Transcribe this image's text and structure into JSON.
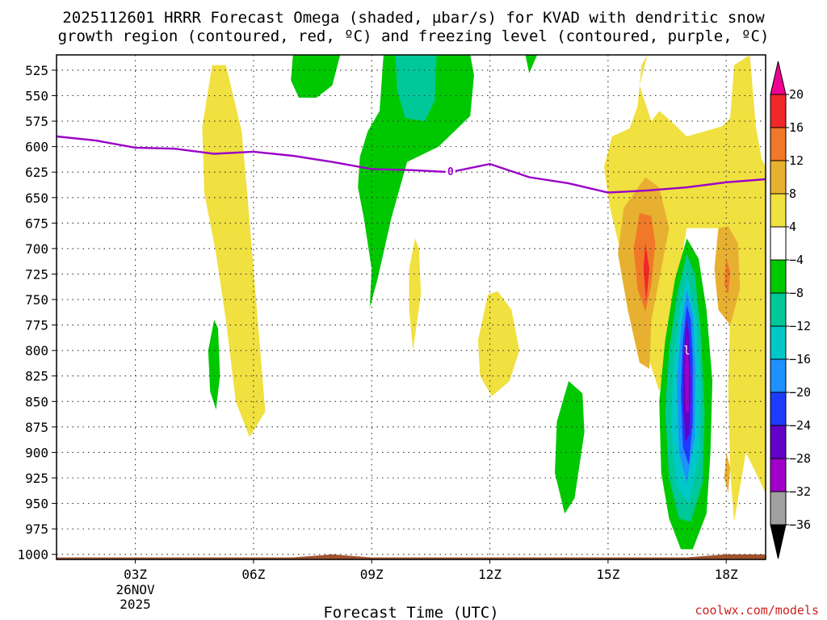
{
  "chart_data": {
    "type": "heatmap",
    "title_lines": [
      "2025112601 HRRR Forecast Omega (shaded, µbar/s) for KVAD with dendritic snow",
      "growth region (contoured, red, ºC) and freezing level (contoured, purple, ºC)"
    ],
    "xlabel": "Forecast Time (UTC)",
    "x_range_hours": [
      1,
      19
    ],
    "x_ticks": [
      {
        "hour": 3,
        "label": "03Z"
      },
      {
        "hour": 6,
        "label": "06Z"
      },
      {
        "hour": 9,
        "label": "09Z"
      },
      {
        "hour": 12,
        "label": "12Z"
      },
      {
        "hour": 15,
        "label": "15Z"
      },
      {
        "hour": 18,
        "label": "18Z"
      }
    ],
    "date_label": [
      "26NOV",
      "2025"
    ],
    "date_label_hour": 3,
    "y_range_mb": [
      1005,
      510
    ],
    "y_ticks": [
      525,
      550,
      575,
      600,
      625,
      650,
      675,
      700,
      725,
      750,
      775,
      800,
      825,
      850,
      875,
      900,
      925,
      950,
      975,
      1000
    ],
    "colorbar": {
      "levels": [
        20,
        16,
        12,
        8,
        4,
        -4,
        -8,
        -12,
        -16,
        -20,
        -24,
        -28,
        -32,
        -36
      ],
      "colors": [
        "#f00090",
        "#f02828",
        "#f07828",
        "#e8b030",
        "#f0e040",
        "#ffffff",
        "#00c800",
        "#00c898",
        "#00c8c8",
        "#1e90ff",
        "#1e3cff",
        "#6400c8",
        "#a000c8",
        "#a0a0a0",
        "#000000"
      ]
    },
    "freezing_level": {
      "label": "0",
      "color": "#9a00c8",
      "label_hour": 11.0,
      "points": [
        [
          1,
          590
        ],
        [
          2,
          594
        ],
        [
          3,
          601
        ],
        [
          4,
          602
        ],
        [
          5,
          607
        ],
        [
          6,
          605
        ],
        [
          7,
          609
        ],
        [
          8,
          615
        ],
        [
          9,
          622
        ],
        [
          10,
          623
        ],
        [
          11,
          625
        ],
        [
          12,
          617
        ],
        [
          13,
          630
        ],
        [
          14,
          636
        ],
        [
          15,
          645
        ],
        [
          16,
          643
        ],
        [
          17,
          640
        ],
        [
          18,
          635
        ],
        [
          19,
          632
        ]
      ]
    },
    "shaded_regions": [
      {
        "name": "yellow-06z-column",
        "value": 6,
        "points": [
          [
            4.95,
            520
          ],
          [
            4.7,
            580
          ],
          [
            4.75,
            645
          ],
          [
            5.05,
            705
          ],
          [
            5.3,
            770
          ],
          [
            5.55,
            850
          ],
          [
            5.9,
            885
          ],
          [
            6.3,
            860
          ],
          [
            6.15,
            790
          ],
          [
            6.0,
            720
          ],
          [
            5.85,
            650
          ],
          [
            5.7,
            585
          ],
          [
            5.3,
            520
          ]
        ]
      },
      {
        "name": "green-05z-strip",
        "value": -6,
        "points": [
          [
            5.0,
            770
          ],
          [
            4.85,
            800
          ],
          [
            4.9,
            840
          ],
          [
            5.05,
            858
          ],
          [
            5.15,
            825
          ],
          [
            5.1,
            778
          ]
        ]
      },
      {
        "name": "green-07z-top",
        "value": -6,
        "points": [
          [
            7.0,
            510
          ],
          [
            6.95,
            535
          ],
          [
            7.15,
            552
          ],
          [
            7.6,
            552
          ],
          [
            8.0,
            540
          ],
          [
            8.2,
            510
          ]
        ]
      },
      {
        "name": "green-09z-column",
        "value": -6,
        "points": [
          [
            9.3,
            510
          ],
          [
            9.2,
            565
          ],
          [
            8.9,
            585
          ],
          [
            8.7,
            610
          ],
          [
            8.65,
            640
          ],
          [
            8.8,
            670
          ],
          [
            9.0,
            720
          ],
          [
            8.95,
            758
          ],
          [
            9.15,
            730
          ],
          [
            9.5,
            670
          ],
          [
            9.9,
            615
          ],
          [
            10.7,
            600
          ],
          [
            11.5,
            570
          ],
          [
            11.6,
            530
          ],
          [
            11.5,
            510
          ]
        ]
      },
      {
        "name": "teal-10z-top",
        "value": -10,
        "points": [
          [
            9.6,
            510
          ],
          [
            9.65,
            545
          ],
          [
            9.85,
            572
          ],
          [
            10.35,
            575
          ],
          [
            10.6,
            555
          ],
          [
            10.65,
            510
          ]
        ]
      },
      {
        "name": "green-13z-speck",
        "value": -6,
        "points": [
          [
            12.9,
            510
          ],
          [
            13.0,
            528
          ],
          [
            13.2,
            510
          ]
        ]
      },
      {
        "name": "yellow-10z-strip",
        "value": 6,
        "points": [
          [
            10.1,
            690
          ],
          [
            9.95,
            720
          ],
          [
            9.95,
            760
          ],
          [
            10.05,
            800
          ],
          [
            10.25,
            745
          ],
          [
            10.2,
            700
          ]
        ]
      },
      {
        "name": "yellow-12z-blob",
        "value": 6,
        "points": [
          [
            11.95,
            745
          ],
          [
            11.7,
            790
          ],
          [
            11.75,
            825
          ],
          [
            12.05,
            845
          ],
          [
            12.5,
            830
          ],
          [
            12.75,
            800
          ],
          [
            12.55,
            760
          ],
          [
            12.2,
            742
          ]
        ]
      },
      {
        "name": "green-14z-blob",
        "value": -6,
        "points": [
          [
            14.0,
            830
          ],
          [
            13.7,
            870
          ],
          [
            13.65,
            920
          ],
          [
            13.9,
            960
          ],
          [
            14.15,
            945
          ],
          [
            14.4,
            880
          ],
          [
            14.35,
            842
          ]
        ]
      },
      {
        "name": "yellow-15z-17z-big",
        "value": 6,
        "points": [
          [
            16.0,
            510
          ],
          [
            15.8,
            540
          ],
          [
            16.1,
            575
          ],
          [
            16.3,
            565
          ],
          [
            16.6,
            575
          ],
          [
            17.0,
            590
          ],
          [
            17.9,
            580
          ],
          [
            18.1,
            572
          ],
          [
            18.2,
            520
          ],
          [
            18.6,
            510
          ],
          [
            18.75,
            580
          ],
          [
            18.9,
            612
          ],
          [
            19.0,
            620
          ],
          [
            19.0,
            940
          ],
          [
            18.5,
            900
          ],
          [
            18.2,
            968
          ],
          [
            18.1,
            918
          ],
          [
            18.05,
            838
          ],
          [
            18.1,
            760
          ],
          [
            17.8,
            680
          ],
          [
            17.0,
            680
          ],
          [
            16.6,
            765
          ],
          [
            16.45,
            818
          ],
          [
            16.3,
            840
          ],
          [
            15.8,
            780
          ],
          [
            15.3,
            700
          ],
          [
            15.05,
            660
          ],
          [
            14.9,
            620
          ],
          [
            15.1,
            590
          ],
          [
            15.55,
            582
          ],
          [
            15.75,
            560
          ],
          [
            15.85,
            520
          ]
        ]
      },
      {
        "name": "orange-15z-16z",
        "value": 10,
        "points": [
          [
            15.95,
            630
          ],
          [
            15.4,
            660
          ],
          [
            15.25,
            705
          ],
          [
            15.5,
            760
          ],
          [
            15.8,
            812
          ],
          [
            16.05,
            818
          ],
          [
            16.1,
            770
          ],
          [
            16.35,
            720
          ],
          [
            16.55,
            680
          ],
          [
            16.3,
            640
          ]
        ]
      },
      {
        "name": "red-16z",
        "value": 14,
        "points": [
          [
            15.8,
            665
          ],
          [
            15.65,
            700
          ],
          [
            15.75,
            740
          ],
          [
            15.95,
            762
          ],
          [
            16.1,
            735
          ],
          [
            16.2,
            695
          ],
          [
            16.1,
            668
          ]
        ]
      },
      {
        "name": "magenta-16z",
        "value": 18,
        "points": [
          [
            15.95,
            695
          ],
          [
            15.9,
            720
          ],
          [
            15.97,
            752
          ],
          [
            16.05,
            720
          ]
        ]
      },
      {
        "name": "orange-18z-strip",
        "value": 10,
        "points": [
          [
            17.8,
            680
          ],
          [
            17.7,
            720
          ],
          [
            17.8,
            760
          ],
          [
            18.1,
            775
          ],
          [
            18.35,
            740
          ],
          [
            18.3,
            695
          ],
          [
            18.05,
            678
          ]
        ]
      },
      {
        "name": "red-18z-speck",
        "value": 14,
        "points": [
          [
            18.0,
            710
          ],
          [
            17.95,
            735
          ],
          [
            18.05,
            745
          ],
          [
            18.1,
            722
          ]
        ]
      },
      {
        "name": "orange-18z-low",
        "value": 10,
        "points": [
          [
            18.0,
            900
          ],
          [
            17.95,
            925
          ],
          [
            18.05,
            940
          ],
          [
            18.1,
            915
          ]
        ]
      },
      {
        "name": "green-17z-system",
        "value": -6,
        "points": [
          [
            17.0,
            690
          ],
          [
            16.7,
            730
          ],
          [
            16.45,
            790
          ],
          [
            16.3,
            850
          ],
          [
            16.35,
            920
          ],
          [
            16.55,
            965
          ],
          [
            16.85,
            995
          ],
          [
            17.15,
            995
          ],
          [
            17.5,
            960
          ],
          [
            17.6,
            900
          ],
          [
            17.65,
            830
          ],
          [
            17.5,
            760
          ],
          [
            17.3,
            710
          ]
        ]
      },
      {
        "name": "teal-17z-system",
        "value": -10,
        "points": [
          [
            17.0,
            705
          ],
          [
            16.75,
            745
          ],
          [
            16.55,
            800
          ],
          [
            16.45,
            860
          ],
          [
            16.55,
            925
          ],
          [
            16.8,
            965
          ],
          [
            17.1,
            968
          ],
          [
            17.4,
            930
          ],
          [
            17.45,
            860
          ],
          [
            17.35,
            780
          ],
          [
            17.2,
            725
          ]
        ]
      },
      {
        "name": "cyan-17z-system",
        "value": -14,
        "points": [
          [
            17.0,
            725
          ],
          [
            16.8,
            765
          ],
          [
            16.65,
            820
          ],
          [
            16.6,
            880
          ],
          [
            16.75,
            935
          ],
          [
            17.05,
            950
          ],
          [
            17.3,
            905
          ],
          [
            17.35,
            840
          ],
          [
            17.25,
            770
          ]
        ]
      },
      {
        "name": "lightblue-17z-system",
        "value": -18,
        "points": [
          [
            17.0,
            740
          ],
          [
            16.85,
            780
          ],
          [
            16.75,
            830
          ],
          [
            16.8,
            900
          ],
          [
            17.0,
            930
          ],
          [
            17.2,
            885
          ],
          [
            17.22,
            820
          ],
          [
            17.15,
            765
          ]
        ]
      },
      {
        "name": "blue-17z-system",
        "value": -22,
        "points": [
          [
            17.0,
            755
          ],
          [
            16.9,
            790
          ],
          [
            16.85,
            840
          ],
          [
            16.9,
            895
          ],
          [
            17.05,
            912
          ],
          [
            17.15,
            870
          ],
          [
            17.15,
            810
          ],
          [
            17.1,
            770
          ]
        ]
      },
      {
        "name": "violet-17z-core",
        "value": -26,
        "points": [
          [
            17.0,
            768
          ],
          [
            16.92,
            805
          ],
          [
            16.9,
            850
          ],
          [
            16.97,
            890
          ],
          [
            17.08,
            880
          ],
          [
            17.1,
            830
          ],
          [
            17.06,
            785
          ]
        ]
      },
      {
        "name": "purple-17z-core",
        "value": -30,
        "points": [
          [
            17.0,
            785
          ],
          [
            16.95,
            815
          ],
          [
            16.97,
            860
          ],
          [
            17.05,
            860
          ],
          [
            17.05,
            815
          ]
        ]
      }
    ],
    "center_markers": [
      {
        "name": "low-marker",
        "label": "l",
        "hour": 17.0,
        "mb": 800
      }
    ],
    "ground": {
      "color": "#a0522d",
      "points": [
        [
          1,
          1003
        ],
        [
          7,
          1003
        ],
        [
          8,
          1000
        ],
        [
          9,
          1003
        ],
        [
          17,
          1003
        ],
        [
          18,
          1000
        ],
        [
          19,
          1000
        ],
        [
          19,
          1006
        ],
        [
          1,
          1006
        ]
      ]
    }
  },
  "credit": {
    "text": "coolwx.com/models",
    "color": "#cc2020"
  }
}
